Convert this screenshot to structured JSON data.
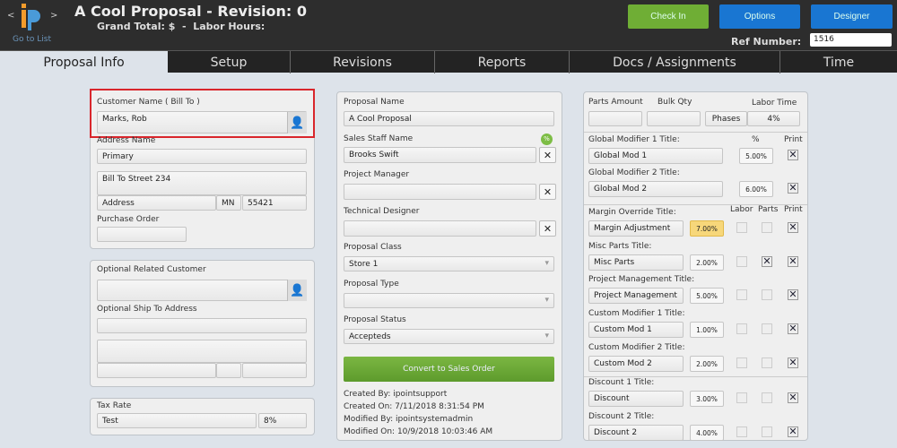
{
  "header": {
    "title": "A Cool Proposal - Revision: 0",
    "subtitle": "Grand Total: $  -  Labor Hours:",
    "go_to_list": "Go to List",
    "prev": "<",
    "next": ">",
    "buttons": {
      "check_in": "Check In",
      "options": "Options",
      "designer": "Designer"
    },
    "ref_label": "Ref Number:",
    "ref_value": "1516",
    "colors": {
      "check_in": "#6fae35",
      "options": "#1976d2",
      "designer": "#1976d2"
    }
  },
  "tabs": [
    "Proposal Info",
    "Setup",
    "Revisions",
    "Reports",
    "Docs / Assignments",
    "Time"
  ],
  "active_tab": "Proposal Info",
  "customer": {
    "name_label": "Customer Name ( Bill To )",
    "name": "Marks, Rob",
    "address_name_label": "Address Name",
    "address_name": "Primary",
    "street": "Bill To Street 234",
    "city": "Address",
    "state": "MN",
    "zip": "55421",
    "po_label": "Purchase Order",
    "po": ""
  },
  "related": {
    "label": "Optional Related Customer",
    "value": "",
    "ship_label": "Optional Ship To Address"
  },
  "tax": {
    "label": "Tax Rate",
    "name": "Test",
    "rate": "8%"
  },
  "proposal": {
    "name_label": "Proposal Name",
    "name": "A Cool Proposal",
    "sales_label": "Sales Staff Name",
    "sales": "Brooks Swift",
    "commission_icon": "%",
    "pm_label": "Project Manager",
    "pm": "",
    "td_label": "Technical Designer",
    "td": "",
    "class_label": "Proposal Class",
    "class": "Store 1",
    "type_label": "Proposal Type",
    "type": "",
    "status_label": "Proposal Status",
    "status": "Accepteds",
    "convert": "Convert to Sales Order",
    "created_by": "Created By: ipointsupport",
    "created_on": "Created On: 7/11/2018 8:31:54 PM",
    "modified_by": "Modified By: ipointsystemadmin",
    "modified_on": "Modified On: 10/9/2018 10:03:46 AM"
  },
  "modifiers": {
    "parts_amount_label": "Parts Amount",
    "bulk_qty_label": "Bulk Qty",
    "labor_time_label": "Labor Time",
    "phases": "Phases",
    "labor_time": "4%",
    "pct_header": "%",
    "labor_header": "Labor",
    "parts_header": "Parts",
    "print_header": "Print",
    "rows": [
      {
        "label": "Global Modifier 1 Title:",
        "value": "Global Mod 1",
        "pct": "5.00%",
        "print": true
      },
      {
        "label": "Global Modifier 2 Title:",
        "value": "Global Mod 2",
        "pct": "6.00%",
        "print": true
      },
      {
        "label": "Margin Override Title:",
        "value": "Margin Adjustment",
        "pct": "7.00%",
        "labor": false,
        "parts": false,
        "print": true,
        "highlight": true
      },
      {
        "label": "Misc Parts Title:",
        "value": "Misc Parts",
        "pct": "2.00%",
        "labor": false,
        "parts": true,
        "print": true
      },
      {
        "label": "Project Management Title:",
        "value": "Project Management",
        "pct": "5.00%",
        "labor": false,
        "parts": false,
        "print": true
      },
      {
        "label": "Custom Modifier 1 Title:",
        "value": "Custom Mod 1",
        "pct": "1.00%",
        "labor": false,
        "parts": false,
        "print": true
      },
      {
        "label": "Custom Modifier 2 Title:",
        "value": "Custom Mod 2",
        "pct": "2.00%",
        "labor": false,
        "parts": false,
        "print": true
      },
      {
        "label": "Discount 1 Title:",
        "value": "Discount",
        "pct": "3.00%",
        "labor": false,
        "parts": false,
        "print": true
      },
      {
        "label": "Discount 2 Title:",
        "value": "Discount 2",
        "pct": "4.00%",
        "labor": false,
        "parts": false,
        "print": true
      }
    ]
  }
}
